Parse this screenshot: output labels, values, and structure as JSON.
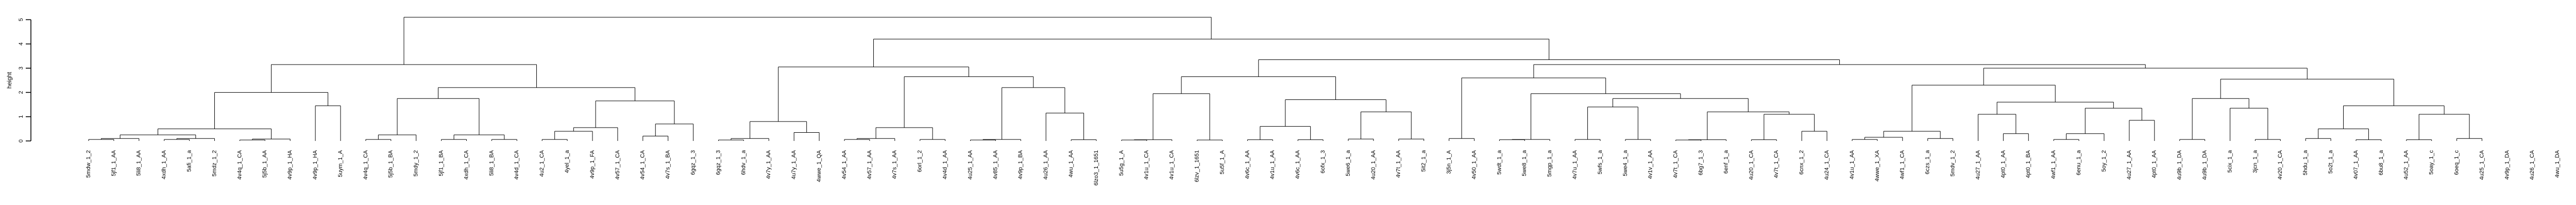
{
  "chart_data": {
    "type": "dendrogram",
    "ylabel": "height",
    "ylim": [
      0,
      5.6
    ],
    "yticks": [
      "0",
      "1",
      "2",
      "3",
      "4",
      "5"
    ],
    "grid": false,
    "leaves": [
      "5mdw_1_2",
      "5jf1_1_AA",
      "5li8_1_AA",
      "4xdh_1_AA",
      "5afi_1_a",
      "5mdz_1_2",
      "4v4q_1_CA",
      "5j5b_1_AA",
      "4v9p_1_HA",
      "4v9p_1_HA",
      "5uym_1_A",
      "4v4q_1_CA",
      "5j5b_1_BA",
      "5mdy_1_2",
      "5jf1_1_BA",
      "4xdh_1_CA",
      "5li8_1_BA",
      "4v4d_1_CA",
      "4u2_1_CA",
      "4yel_1_a",
      "4v9p_1_FA",
      "4v57_1_CA",
      "4v54_1_CA",
      "4v7s_1_BA",
      "6gqz_1_3",
      "6gqz_1_3",
      "6hdv_1_a",
      "4v7y_1_AA",
      "4u7y_1_AA",
      "4wwe_1_QA",
      "4v54_1_AA",
      "4v57_1_AA",
      "4v7s_1_AA",
      "6orl_1_2",
      "4v4d_1_AA",
      "4u25_1_AA",
      "4v85_1_AA",
      "4v9p_1_BA",
      "4u26_1_AA",
      "4wu_1_AA",
      "6lzo3_1_1651",
      "5u5g_1_A",
      "4v1u_1_CA",
      "4v1u_1_CA",
      "6lzv_1_1651",
      "5u5f_1_A",
      "4v6c_1_AA",
      "4v1u_1_AA",
      "4v6c_1_AA",
      "6ofx_1_3",
      "5we6_1_a",
      "4u20_1_AA",
      "4v7t_1_AA",
      "5it2_1_a",
      "3j5n_1_A",
      "4v50_1_AA",
      "5wdt_1_a",
      "5we8_1_a",
      "5mgp_1_a",
      "4v7u_1_AA",
      "5wfs_1_a",
      "5we4_1_a",
      "4v1v_1_AA",
      "4v7t_1_CA",
      "6bg7_1_3",
      "6enf_1_a",
      "4u20_1_CA",
      "4v7t_1_CA",
      "6cnx_1_2",
      "4u24_1_CA",
      "4v1u_1_AA",
      "4wwe_1_XA",
      "4wf1_1_CA",
      "6czs_1_a",
      "5mdv_1_2",
      "4u27_1_AA",
      "4pt0_1_AA",
      "4pt0_1_BA",
      "4wf1_1_AA",
      "6enu_1_a",
      "5oy_1_2",
      "4u27_1_AA",
      "4pt0_1_AA",
      "4u9b_1_DA",
      "4u9b_1_DA",
      "5cix_1_a",
      "3jcn_1_a",
      "4v20_1_CA",
      "5hdu_1_a",
      "5o2t_1_a",
      "4v07_1_AA",
      "6bu8_1_a",
      "4u52_1_AA",
      "5oay_1_c",
      "6oeq_1_c",
      "4u25_1_CA",
      "4v9p_1_DA",
      "4u26_1_CA",
      "4wu_1_DA"
    ]
  }
}
